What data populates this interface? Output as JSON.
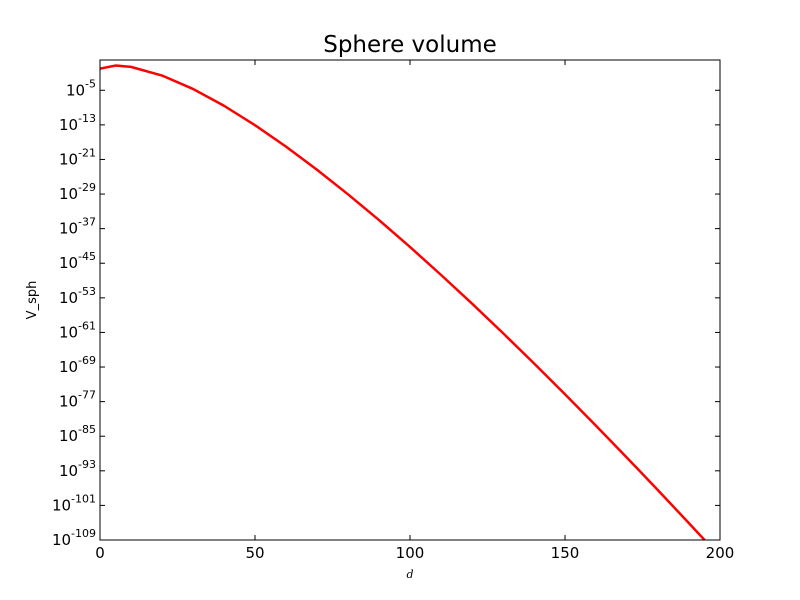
{
  "chart_data": {
    "type": "line",
    "title": "Sphere volume",
    "xlabel": "d",
    "ylabel": "V_sph",
    "xlim": [
      0,
      200
    ],
    "y_scale": "log",
    "ylim_log10": [
      -109,
      2.0
    ],
    "x_ticks": [
      0,
      50,
      100,
      150,
      200
    ],
    "y_ticks": [
      {
        "base": "10",
        "exp": "-109",
        "log10": -109
      },
      {
        "base": "10",
        "exp": "-101",
        "log10": -101
      },
      {
        "base": "10",
        "exp": "-93",
        "log10": -93
      },
      {
        "base": "10",
        "exp": "-85",
        "log10": -85
      },
      {
        "base": "10",
        "exp": "-77",
        "log10": -77
      },
      {
        "base": "10",
        "exp": "-69",
        "log10": -69
      },
      {
        "base": "10",
        "exp": "-61",
        "log10": -61
      },
      {
        "base": "10",
        "exp": "-53",
        "log10": -53
      },
      {
        "base": "10",
        "exp": "-45",
        "log10": -45
      },
      {
        "base": "10",
        "exp": "-37",
        "log10": -37
      },
      {
        "base": "10",
        "exp": "-29",
        "log10": -29
      },
      {
        "base": "10",
        "exp": "-21",
        "log10": -21
      },
      {
        "base": "10",
        "exp": "-13",
        "log10": -13
      },
      {
        "base": "10",
        "exp": "-5",
        "log10": -5
      }
    ],
    "grid": false,
    "series": [
      {
        "color": "#ff0000",
        "x": [
          0,
          5,
          10,
          20,
          30,
          40,
          50,
          60,
          70,
          80,
          90,
          100,
          110,
          120,
          130,
          140,
          150,
          160,
          170,
          180,
          190,
          200
        ],
        "y_log10": [
          0.0,
          0.72,
          0.41,
          -1.59,
          -4.69,
          -8.58,
          -13.07,
          -18.03,
          -23.38,
          -29.06,
          -35.02,
          -41.24,
          -47.69,
          -54.33,
          -61.16,
          -68.15,
          -75.29,
          -82.57,
          -89.97,
          -97.49,
          -105.12,
          -112.85
        ]
      }
    ]
  }
}
